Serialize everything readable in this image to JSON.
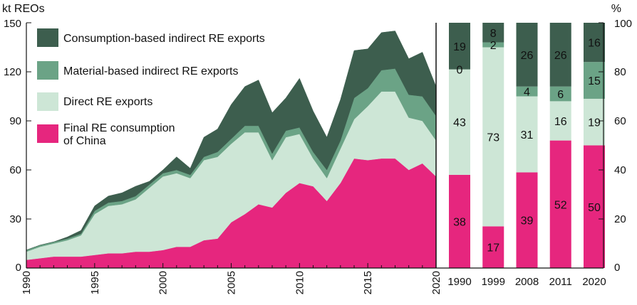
{
  "chart_data": [
    {
      "type": "area",
      "stacked": true,
      "ylabel": "kt REOs",
      "ylim": [
        0,
        150
      ],
      "yticks": [
        "0",
        "30",
        "60",
        "90",
        "120",
        "150"
      ],
      "xlim": [
        1990,
        2020
      ],
      "xticks": [
        "1990",
        "1995",
        "2000",
        "2005",
        "2010",
        "2015",
        "2020"
      ],
      "x": [
        1990,
        1991,
        1992,
        1993,
        1994,
        1995,
        1996,
        1997,
        1998,
        1999,
        2000,
        2001,
        2002,
        2003,
        2004,
        2005,
        2006,
        2007,
        2008,
        2009,
        2010,
        2011,
        2012,
        2013,
        2014,
        2015,
        2016,
        2017,
        2018,
        2019,
        2020
      ],
      "series": [
        {
          "name": "Final RE consumption of China",
          "color": "#e6267e",
          "values": [
            5,
            6,
            7,
            7,
            7,
            8,
            9,
            9,
            10,
            10,
            11,
            13,
            13,
            17,
            18,
            28,
            33,
            39,
            37,
            46,
            52,
            50,
            41,
            52,
            67,
            66,
            67,
            67,
            60,
            64,
            56
          ]
        },
        {
          "name": "Direct RE exports",
          "color": "#cde6d6",
          "values": [
            5,
            7,
            8,
            10,
            13,
            25,
            29,
            30,
            32,
            39,
            45,
            45,
            42,
            49,
            50,
            48,
            50,
            44,
            29,
            34,
            30,
            17,
            14,
            21,
            24,
            33,
            41,
            41,
            32,
            26,
            22
          ]
        },
        {
          "name": "Material-based indirect RE exports",
          "color": "#6ba386",
          "values": [
            1,
            1,
            1,
            1,
            1,
            2,
            2,
            2,
            2,
            2,
            2,
            2,
            2,
            2,
            3,
            3,
            4,
            4,
            4,
            4,
            4,
            4,
            5,
            5,
            13,
            11,
            13,
            14,
            14,
            15,
            15
          ]
        },
        {
          "name": "Consumption-based indirect RE exports",
          "color": "#3d5e4e",
          "values": [
            0,
            0,
            0,
            1,
            2,
            3,
            4,
            5,
            6,
            2,
            2,
            8,
            4,
            12,
            14,
            21,
            24,
            28,
            25,
            20,
            30,
            25,
            20,
            25,
            29,
            24,
            23,
            23,
            22,
            27,
            18
          ]
        }
      ]
    },
    {
      "type": "bar",
      "stacked": true,
      "ylabel": "%",
      "ylim": [
        0,
        100
      ],
      "yticks": [
        "0",
        "20",
        "40",
        "60",
        "80",
        "100"
      ],
      "categories": [
        "1990",
        "1999",
        "2008",
        "2011",
        "2020"
      ],
      "series": [
        {
          "name": "Final RE consumption of China",
          "color": "#e6267e",
          "values": [
            38,
            17,
            39,
            52,
            50
          ],
          "labels": [
            "38",
            "17",
            "39",
            "52",
            "50"
          ]
        },
        {
          "name": "Direct RE exports",
          "color": "#cde6d6",
          "values": [
            43,
            73,
            31,
            16,
            19
          ],
          "labels": [
            "43",
            "73",
            "31",
            "16",
            "19"
          ]
        },
        {
          "name": "Material-based indirect RE exports",
          "color": "#6ba386",
          "values": [
            0,
            2,
            4,
            6,
            15
          ],
          "labels": [
            "0",
            "2",
            "4",
            "6",
            "15"
          ]
        },
        {
          "name": "Consumption-based indirect RE exports",
          "color": "#3d5e4e",
          "values": [
            19,
            8,
            26,
            26,
            16
          ],
          "labels": [
            "19",
            "8",
            "26",
            "26",
            "16"
          ]
        }
      ]
    }
  ],
  "legend": {
    "items": [
      {
        "label": "Consumption-based indirect RE exports",
        "color": "#3d5e4e"
      },
      {
        "label": "Material-based indirect RE exports",
        "color": "#6ba386"
      },
      {
        "label": "Direct RE exports",
        "color": "#cde6d6"
      },
      {
        "label": "Final RE consumption",
        "label2": "of China",
        "color": "#e6267e"
      }
    ]
  }
}
